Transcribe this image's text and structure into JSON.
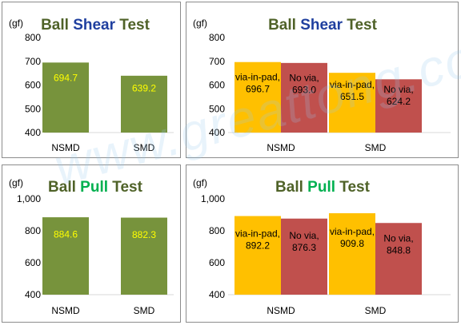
{
  "watermark": "www.greattong.com",
  "colors": {
    "title_dark": "#4f6228",
    "title_blue": "#1f3f9f",
    "title_green": "#00b050",
    "olive": "#77933c",
    "orange": "#ffc000",
    "red": "#c0504d",
    "label_yellow": "#ffff00",
    "label_dark": "#000000"
  },
  "chart_data": [
    {
      "type": "bar",
      "title_parts": [
        {
          "text": "Ball ",
          "color": "title_dark"
        },
        {
          "text": "Shear",
          "color": "title_blue"
        },
        {
          "text": " Test",
          "color": "title_dark"
        }
      ],
      "ylabel": "(gf)",
      "ylim": [
        400,
        800
      ],
      "yticks": [
        400,
        500,
        600,
        700,
        800
      ],
      "ytick_labels": [
        "400",
        "500",
        "600",
        "700",
        "800"
      ],
      "categories": [
        "NSMD",
        "SMD"
      ],
      "series": [
        {
          "color": "olive",
          "values": [
            694.7,
            639.2
          ],
          "labels": [
            [
              "694.7"
            ],
            [
              "639.2"
            ]
          ],
          "label_color": "label_yellow"
        }
      ]
    },
    {
      "type": "bar",
      "title_parts": [
        {
          "text": "Ball ",
          "color": "title_dark"
        },
        {
          "text": "Shear",
          "color": "title_blue"
        },
        {
          "text": " Test",
          "color": "title_dark"
        }
      ],
      "ylabel": "(gf)",
      "ylim": [
        400,
        800
      ],
      "yticks": [
        400,
        500,
        600,
        700,
        800
      ],
      "ytick_labels": [
        "400",
        "500",
        "600",
        "700",
        "800"
      ],
      "categories": [
        "NSMD",
        "SMD"
      ],
      "series": [
        {
          "color": "orange",
          "values": [
            696.7,
            651.5
          ],
          "labels": [
            [
              "via-in-pad,",
              "696.7"
            ],
            [
              "via-in-pad,",
              "651.5"
            ]
          ],
          "label_color": "label_dark"
        },
        {
          "color": "red",
          "values": [
            693.0,
            624.2
          ],
          "labels": [
            [
              "No via,",
              "693.0"
            ],
            [
              "No via,",
              "624.2"
            ]
          ],
          "label_color": "label_dark"
        }
      ]
    },
    {
      "type": "bar",
      "title_parts": [
        {
          "text": "Ball ",
          "color": "title_dark"
        },
        {
          "text": "Pull",
          "color": "title_green"
        },
        {
          "text": " Test",
          "color": "title_dark"
        }
      ],
      "ylabel": "(gf)",
      "ylim": [
        400,
        1000
      ],
      "yticks": [
        400,
        600,
        800,
        1000
      ],
      "ytick_labels": [
        "400",
        "600",
        "800",
        "1,000"
      ],
      "categories": [
        "NSMD",
        "SMD"
      ],
      "series": [
        {
          "color": "olive",
          "values": [
            884.6,
            882.3
          ],
          "labels": [
            [
              "884.6"
            ],
            [
              "882.3"
            ]
          ],
          "label_color": "label_yellow"
        }
      ]
    },
    {
      "type": "bar",
      "title_parts": [
        {
          "text": "Ball ",
          "color": "title_dark"
        },
        {
          "text": "Pull",
          "color": "title_green"
        },
        {
          "text": " Test",
          "color": "title_dark"
        }
      ],
      "ylabel": "(gf)",
      "ylim": [
        400,
        1000
      ],
      "yticks": [
        400,
        600,
        800,
        1000
      ],
      "ytick_labels": [
        "400",
        "600",
        "800",
        "1,000"
      ],
      "categories": [
        "NSMD",
        "SMD"
      ],
      "series": [
        {
          "color": "orange",
          "values": [
            892.2,
            909.8
          ],
          "labels": [
            [
              "via-in-pad,",
              "892.2"
            ],
            [
              "via-in-pad,",
              "909.8"
            ]
          ],
          "label_color": "label_dark"
        },
        {
          "color": "red",
          "values": [
            876.3,
            848.8
          ],
          "labels": [
            [
              "No via,",
              "876.3"
            ],
            [
              "No via,",
              "848.8"
            ]
          ],
          "label_color": "label_dark"
        }
      ]
    }
  ]
}
